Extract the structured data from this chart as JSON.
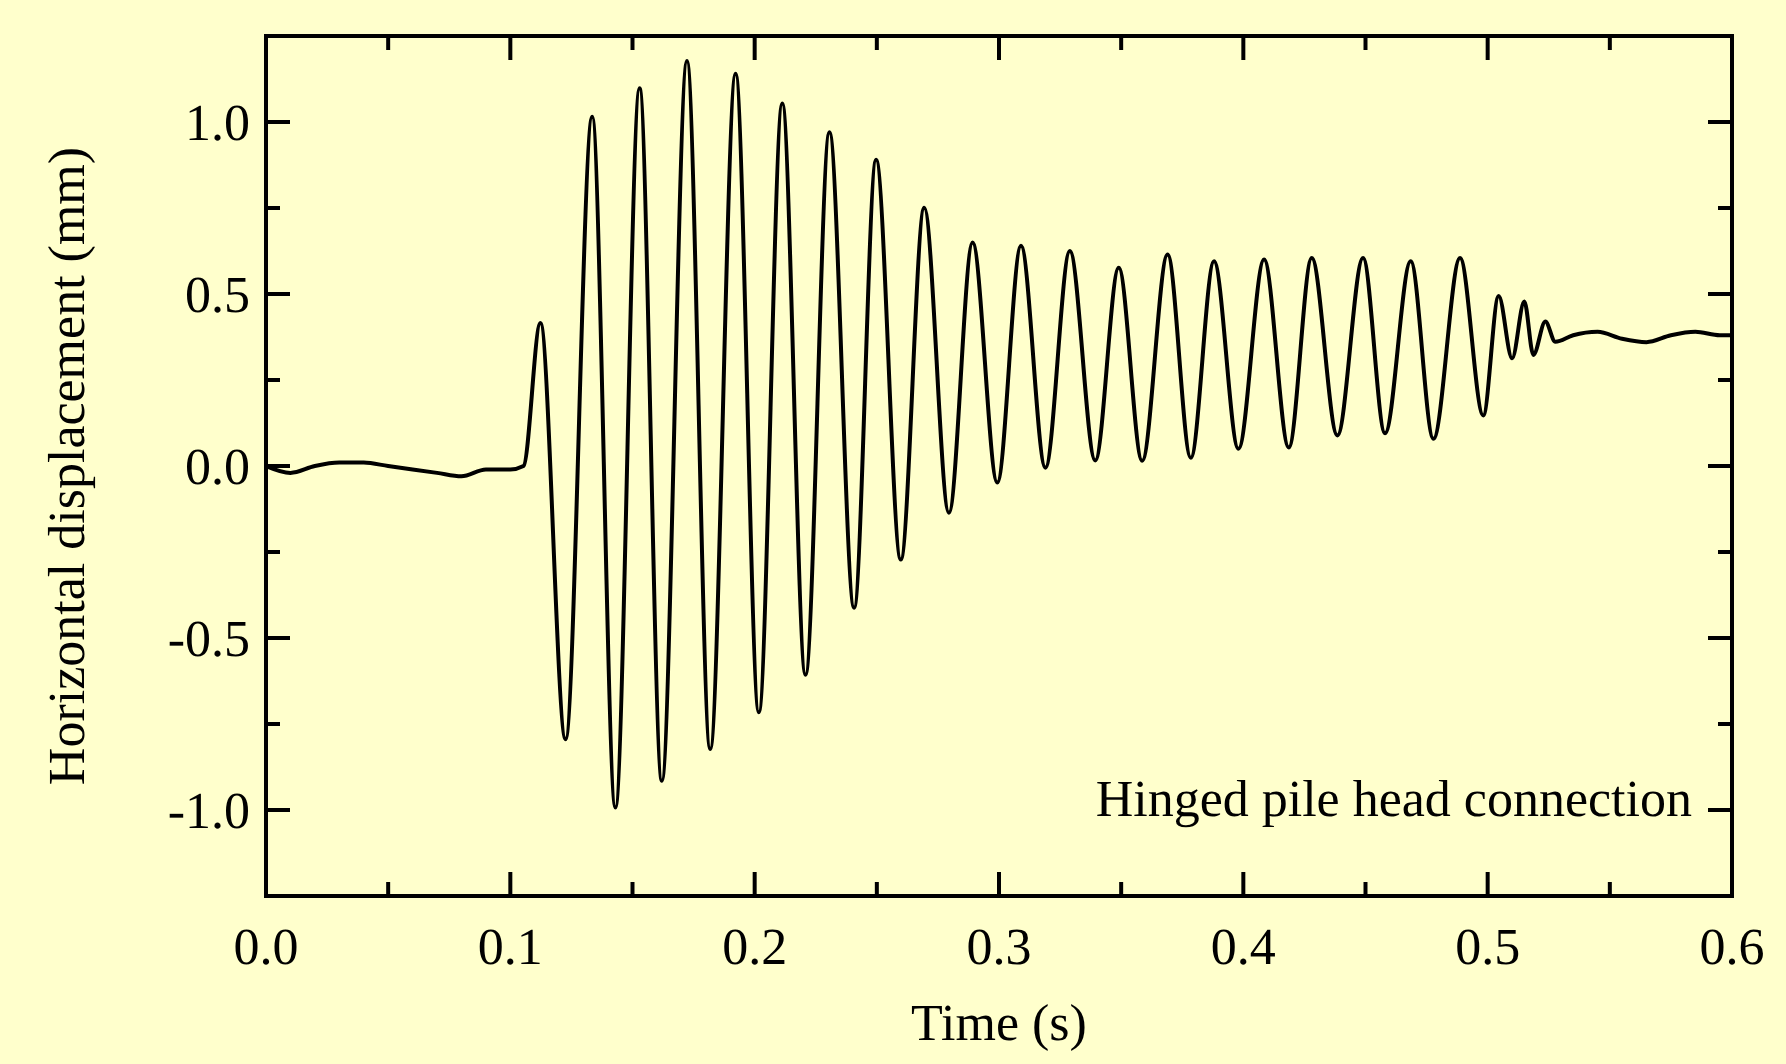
{
  "chart_data": {
    "type": "line",
    "xlabel": "Time (s)",
    "ylabel": "Horizontal displacement (mm)",
    "annotations": [
      "Hinged pile head connection"
    ],
    "xlim": [
      0,
      0.6
    ],
    "ylim": [
      -1.25,
      1.25
    ],
    "xticks": [
      {
        "value": 0,
        "label": "0.0"
      },
      {
        "value": 0.05,
        "label": null
      },
      0.1,
      {
        "value": 0.15,
        "label": null
      },
      0.2,
      {
        "value": 0.25,
        "label": null
      },
      0.3,
      {
        "value": 0.35,
        "label": null
      },
      0.4,
      {
        "value": 0.45,
        "label": null
      },
      0.5,
      {
        "value": 0.55,
        "label": null
      },
      0.6
    ],
    "yticks": [
      {
        "value": -1.25,
        "label": null
      },
      {
        "value": -1,
        "label": "-1.0"
      },
      {
        "value": -0.75,
        "label": null
      },
      -0.5,
      {
        "value": -0.25,
        "label": null
      },
      {
        "value": 0,
        "label": "0.0"
      },
      {
        "value": 0.25,
        "label": null
      },
      0.5,
      {
        "value": 0.75,
        "label": null
      },
      {
        "value": 1,
        "label": "1.0"
      },
      {
        "value": 1.25,
        "label": null
      }
    ],
    "grid": false,
    "marker": "none",
    "line_style": "solid",
    "series": [
      {
        "color": "#000000",
        "x": [
          0,
          0.01,
          0.02,
          0.03,
          0.04,
          0.05,
          0.06,
          0.07,
          0.08,
          0.09,
          0.1,
          0.1054,
          0.1123,
          0.1226,
          0.1335,
          0.143,
          0.1529,
          0.162,
          0.1723,
          0.1818,
          0.1922,
          0.2017,
          0.2113,
          0.2208,
          0.2306,
          0.2407,
          0.2497,
          0.2598,
          0.2694,
          0.2795,
          0.2892,
          0.2993,
          0.309,
          0.319,
          0.329,
          0.3394,
          0.349,
          0.3586,
          0.369,
          0.3785,
          0.388,
          0.398,
          0.4085,
          0.4186,
          0.428,
          0.4385,
          0.449,
          0.458,
          0.4685,
          0.4778,
          0.4887,
          0.4982,
          0.5045,
          0.51,
          0.515,
          0.5187,
          0.5236,
          0.5277,
          0.535,
          0.545,
          0.555,
          0.565,
          0.575,
          0.585,
          0.595,
          0.6
        ],
        "values": [
          0,
          -0.02,
          0,
          0.01,
          0.01,
          0,
          -0.01,
          -0.02,
          -0.03,
          -0.01,
          -0.01,
          0,
          0.416,
          -0.794,
          1.015,
          -0.993,
          1.098,
          -0.915,
          1.177,
          -0.823,
          1.14,
          -0.716,
          1.054,
          -0.607,
          0.97,
          -0.412,
          0.89,
          -0.272,
          0.751,
          -0.136,
          0.65,
          -0.048,
          0.64,
          -0.005,
          0.625,
          0.016,
          0.576,
          0.015,
          0.615,
          0.024,
          0.595,
          0.05,
          0.6,
          0.054,
          0.605,
          0.089,
          0.605,
          0.095,
          0.595,
          0.079,
          0.605,
          0.147,
          0.494,
          0.313,
          0.478,
          0.323,
          0.42,
          0.361,
          0.38,
          0.39,
          0.37,
          0.36,
          0.38,
          0.39,
          0.38,
          0.38
        ]
      }
    ]
  }
}
